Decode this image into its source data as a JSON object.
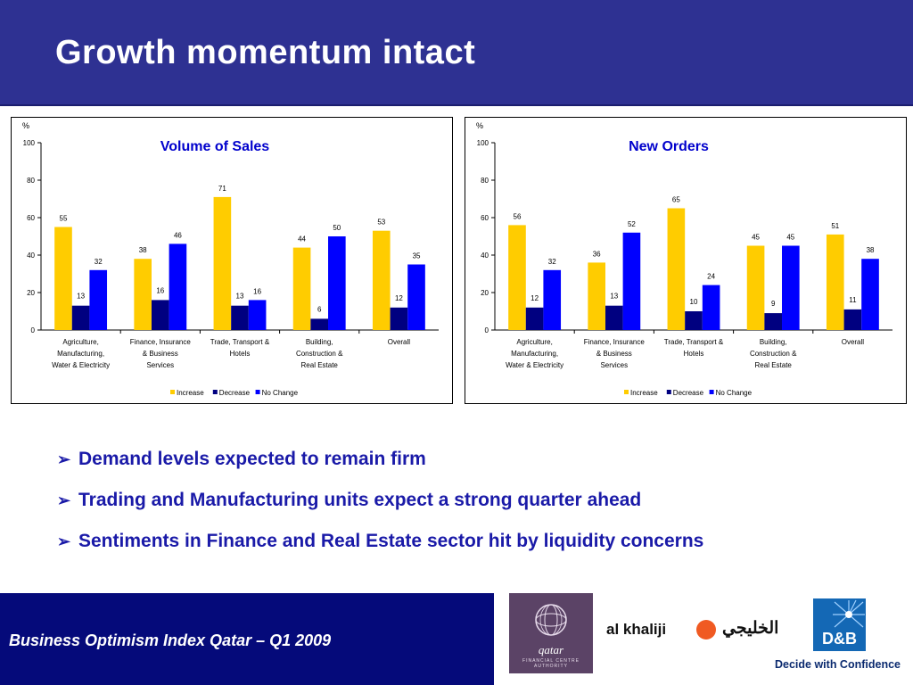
{
  "title": "Growth momentum intact",
  "chart_data": [
    {
      "type": "bar",
      "title": "Volume of Sales",
      "ylabel": "%",
      "ylim": [
        0,
        100
      ],
      "yticks": [
        "0",
        "20",
        "40",
        "60",
        "80",
        "100"
      ],
      "categories": [
        [
          "Agriculture,",
          "Manufacturing,",
          "Water & Electricity"
        ],
        [
          "Finance, Insurance",
          "& Business",
          "Services"
        ],
        [
          "Trade, Transport &",
          "Hotels"
        ],
        [
          "Building,",
          "Construction &",
          "Real Estate"
        ],
        [
          "Overall"
        ]
      ],
      "series": [
        {
          "name": "Increase",
          "color": "#ffcc00",
          "values": [
            55,
            38,
            71,
            44,
            53
          ]
        },
        {
          "name": "Decrease",
          "color": "#000080",
          "values": [
            13,
            16,
            13,
            6,
            12
          ]
        },
        {
          "name": "No Change",
          "color": "#0000ff",
          "values": [
            32,
            46,
            16,
            50,
            35
          ]
        }
      ],
      "grid": false,
      "legend_position": "bottom"
    },
    {
      "type": "bar",
      "title": "New Orders",
      "ylabel": "%",
      "ylim": [
        0,
        100
      ],
      "yticks": [
        "0",
        "20",
        "40",
        "60",
        "80",
        "100"
      ],
      "categories": [
        [
          "Agriculture,",
          "Manufacturing,",
          "Water & Electricity"
        ],
        [
          "Finance, Insurance",
          "& Business",
          "Services"
        ],
        [
          "Trade, Transport &",
          "Hotels"
        ],
        [
          "Building,",
          "Construction &",
          "Real Estate"
        ],
        [
          "Overall"
        ]
      ],
      "series": [
        {
          "name": "Increase",
          "color": "#ffcc00",
          "values": [
            56,
            36,
            65,
            45,
            51
          ]
        },
        {
          "name": "Decrease",
          "color": "#000080",
          "values": [
            12,
            13,
            10,
            9,
            11
          ]
        },
        {
          "name": "No Change",
          "color": "#0000ff",
          "values": [
            32,
            52,
            24,
            45,
            38
          ]
        }
      ],
      "grid": false,
      "legend_position": "bottom"
    }
  ],
  "bullets": [
    "Demand levels expected to remain firm",
    "Trading and Manufacturing units expect a strong quarter ahead",
    "Sentiments in Finance and Real Estate sector hit by liquidity concerns"
  ],
  "bullet_marker": "➢",
  "footer": {
    "text": "Business Optimism Index Qatar – Q1 2009",
    "qfc": {
      "name": "qatar",
      "sub": "FINANCIAL CENTRE AUTHORITY"
    },
    "khaliji": {
      "en": "al khaliji",
      "ar": "الخليجي"
    },
    "dnb": {
      "name": "D&B",
      "tagline": "Decide with Confidence"
    }
  },
  "colors": {
    "header_bg": "#2e3192",
    "footer_bg": "#050a7a",
    "bullet_text": "#1a1aa8",
    "chart_title": "#0000cc"
  }
}
